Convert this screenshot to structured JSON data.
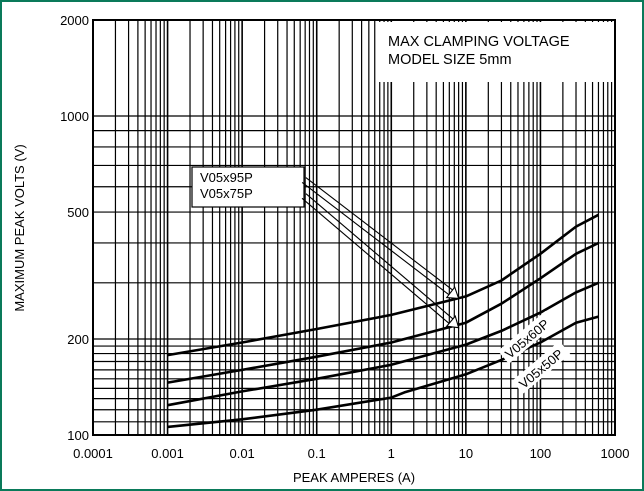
{
  "chart_data": {
    "type": "line",
    "title": "MAX CLAMPING VOLTAGE",
    "subtitle": "MODEL SIZE 5mm",
    "xlabel": "PEAK AMPERES (A)",
    "ylabel": "MAXIMUM PEAK VOLTS (V)",
    "x_scale": "log",
    "y_scale": "log",
    "xlim": [
      0.0001,
      1000
    ],
    "ylim": [
      100,
      2000
    ],
    "grid": true,
    "x_ticks": [
      "0.0001",
      "0.001",
      "0.01",
      "0.1",
      "1",
      "10",
      "100",
      "1000"
    ],
    "y_ticks": [
      "100",
      "200",
      "500",
      "1000",
      "2000"
    ],
    "series": [
      {
        "name": "V05x95P",
        "x": [
          0.001,
          0.01,
          0.1,
          1,
          10,
          30,
          100,
          300,
          600
        ],
        "y": [
          178,
          195,
          215,
          238,
          272,
          305,
          370,
          450,
          490
        ]
      },
      {
        "name": "V05x75P",
        "x": [
          0.001,
          0.01,
          0.1,
          1,
          10,
          30,
          100,
          300,
          600
        ],
        "y": [
          146,
          160,
          176,
          195,
          225,
          258,
          310,
          370,
          400
        ]
      },
      {
        "name": "V05x60P",
        "x": [
          0.001,
          0.01,
          0.1,
          1,
          10,
          30,
          100,
          300,
          600
        ],
        "y": [
          124,
          137,
          150,
          166,
          192,
          212,
          242,
          280,
          300
        ]
      },
      {
        "name": "V05x50P",
        "x": [
          0.001,
          0.01,
          0.1,
          1,
          1.5,
          10,
          30,
          100,
          300,
          600
        ],
        "y": [
          106,
          112,
          120,
          131,
          136,
          155,
          172,
          195,
          225,
          235
        ]
      }
    ],
    "annotations": [
      {
        "labels": [
          "V05x95P",
          "V05x75P"
        ],
        "arrows_to": [
          {
            "x": 8,
            "y": 268
          },
          {
            "x": 8,
            "y": 217
          }
        ]
      },
      {
        "label": "V05x60P",
        "along_series": "V05x60P"
      },
      {
        "label": "V05x50P",
        "along_series": "V05x50P"
      }
    ]
  }
}
